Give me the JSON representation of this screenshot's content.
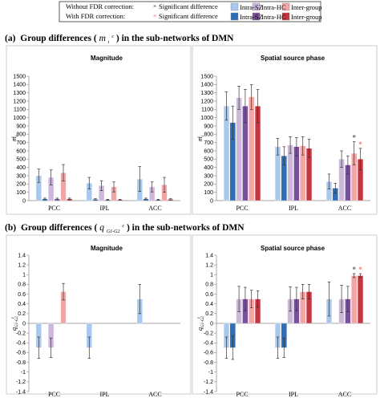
{
  "legend": {
    "without_label": "Without FDR correction:",
    "with_label": "With FDR correction:",
    "sig_label": "Significant difference",
    "sig_colors": [
      "#666666",
      "#f08080"
    ],
    "swatches": [
      {
        "label": "Intra-SZ",
        "color": "#a9c8ef"
      },
      {
        "label": "Intra-SZ",
        "color": "#2f6db5"
      },
      {
        "label": "Intra-HC",
        "color": "#cdb8dc"
      },
      {
        "label": "Intra-HC",
        "color": "#7a4f9c"
      },
      {
        "label": "Inter-group",
        "color": "#f3a4a4"
      },
      {
        "label": "Inter-group",
        "color": "#c0383e"
      }
    ]
  },
  "sections": [
    {
      "label": "(a)",
      "title_pre": "Group differences (",
      "symbol": "m",
      "sup": "c",
      "sub": "i",
      "title_post": ") in the sub-networks of DMN"
    },
    {
      "label": "(b)",
      "title_pre": "Group differences (",
      "symbol": "q",
      "sup": "c",
      "sub": "G1-G2",
      "title_post": ") in the sub-networks of DMN"
    }
  ],
  "chart_data": [
    {
      "type": "bar",
      "title": "Magnitude",
      "ylabel": "m",
      "ylim": [
        0,
        1500
      ],
      "yticks": [
        "0",
        "100",
        "200",
        "300",
        "400",
        "500",
        "600",
        "700",
        "800",
        "900",
        "1000",
        "1100",
        "1200",
        "1300",
        "1400",
        "1500"
      ],
      "categories": [
        "PCC",
        "IPL",
        "ACC"
      ],
      "series": [
        {
          "name": "Intra-SZ",
          "values": [
            300,
            210,
            260
          ],
          "errors": [
            80,
            70,
            150
          ]
        },
        {
          "name": "Intra-SZ",
          "values": [
            20,
            15,
            20
          ],
          "errors": [
            10,
            8,
            10
          ]
        },
        {
          "name": "Intra-HC",
          "values": [
            280,
            180,
            165
          ],
          "errors": [
            90,
            60,
            60
          ]
        },
        {
          "name": "Intra-HC",
          "values": [
            20,
            10,
            10
          ],
          "errors": [
            10,
            6,
            6
          ]
        },
        {
          "name": "Inter-group",
          "values": [
            335,
            165,
            190
          ],
          "errors": [
            100,
            60,
            90
          ]
        },
        {
          "name": "Inter-group",
          "values": [
            20,
            10,
            15
          ],
          "errors": [
            10,
            6,
            8
          ]
        }
      ],
      "markers": []
    },
    {
      "type": "bar",
      "title": "Spatial source phase",
      "ylabel": "m",
      "ylim": [
        0,
        1500
      ],
      "yticks": [
        "0",
        "100",
        "200",
        "300",
        "400",
        "500",
        "600",
        "700",
        "800",
        "900",
        "1000",
        "1100",
        "1200",
        "1300",
        "1400",
        "1500"
      ],
      "categories": [
        "PCC",
        "IPL",
        "ACC"
      ],
      "series": [
        {
          "name": "Intra-SZ",
          "values": [
            1140,
            650,
            230
          ],
          "errors": [
            170,
            100,
            90
          ]
        },
        {
          "name": "Intra-SZ",
          "values": [
            940,
            540,
            150
          ],
          "errors": [
            200,
            110,
            60
          ]
        },
        {
          "name": "Intra-HC",
          "values": [
            1240,
            670,
            500
          ],
          "errors": [
            140,
            100,
            100
          ]
        },
        {
          "name": "Intra-HC",
          "values": [
            1140,
            650,
            430
          ],
          "errors": [
            200,
            110,
            110
          ]
        },
        {
          "name": "Inter-group",
          "values": [
            1250,
            660,
            570
          ],
          "errors": [
            150,
            110,
            140
          ]
        },
        {
          "name": "Inter-group",
          "values": [
            1140,
            630,
            500
          ],
          "errors": [
            200,
            110,
            130
          ]
        }
      ],
      "markers": [
        {
          "category": 2,
          "series": 4,
          "color": "#666666"
        },
        {
          "category": 2,
          "series": 5,
          "color": "#f08080"
        }
      ]
    },
    {
      "type": "bar",
      "title": "Magnitude",
      "ylabel": "q",
      "ylim": [
        -1.4,
        1.4
      ],
      "yticks": [
        "-1.4",
        "-1.2",
        "-1",
        "-0.8",
        "-0.6",
        "-0.4",
        "-0.2",
        "0",
        "0.2",
        "0.4",
        "0.6",
        "0.8",
        "1",
        "1.2",
        "1.4"
      ],
      "categories": [
        "PCC",
        "IPL",
        "ACC"
      ],
      "series": [
        {
          "name": "Intra-SZ",
          "values": [
            -0.5,
            -0.5,
            0.5
          ],
          "errors": [
            0.22,
            0.22,
            0.3
          ]
        },
        {
          "name": "Intra-SZ",
          "values": [
            0,
            0,
            0
          ],
          "errors": [
            0,
            0,
            0
          ]
        },
        {
          "name": "Intra-HC",
          "values": [
            -0.5,
            0,
            0
          ],
          "errors": [
            0.2,
            0,
            0
          ]
        },
        {
          "name": "Intra-HC",
          "values": [
            0,
            0,
            0
          ],
          "errors": [
            0,
            0,
            0
          ]
        },
        {
          "name": "Inter-group",
          "values": [
            0.65,
            0,
            0
          ],
          "errors": [
            0.17,
            0,
            0
          ]
        },
        {
          "name": "Inter-group",
          "values": [
            0,
            0,
            0
          ],
          "errors": [
            0,
            0,
            0
          ]
        }
      ],
      "markers": []
    },
    {
      "type": "bar",
      "title": "Spatial source phase",
      "ylabel": "q",
      "ylim": [
        -1.4,
        1.4
      ],
      "yticks": [
        "-1.4",
        "-1.2",
        "-1",
        "-0.8",
        "-0.6",
        "-0.4",
        "-0.2",
        "0",
        "0.2",
        "0.4",
        "0.6",
        "0.8",
        "1",
        "1.2",
        "1.4"
      ],
      "categories": [
        "PCC",
        "IPL",
        "ACC"
      ],
      "series": [
        {
          "name": "Intra-SZ",
          "values": [
            -0.5,
            -0.5,
            0.5
          ],
          "errors": [
            0.22,
            0.22,
            0.35
          ]
        },
        {
          "name": "Intra-SZ",
          "values": [
            -0.5,
            -0.5,
            0
          ],
          "errors": [
            0.24,
            0.2,
            0
          ]
        },
        {
          "name": "Intra-HC",
          "values": [
            0.5,
            0.5,
            0.5
          ],
          "errors": [
            0.26,
            0.25,
            0.28
          ]
        },
        {
          "name": "Intra-HC",
          "values": [
            0.5,
            0.5,
            0.5
          ],
          "errors": [
            0.24,
            0.24,
            0.26
          ]
        },
        {
          "name": "Inter-group",
          "values": [
            0.5,
            0.65,
            0.98
          ],
          "errors": [
            0.18,
            0.15,
            0.04
          ]
        },
        {
          "name": "Inter-group",
          "values": [
            0.5,
            0.65,
            0.98
          ],
          "errors": [
            0.17,
            0.15,
            0.04
          ]
        }
      ],
      "markers": [
        {
          "category": 2,
          "series": 4,
          "color": "#666666"
        },
        {
          "category": 2,
          "series": 5,
          "color": "#f08080"
        }
      ]
    }
  ]
}
